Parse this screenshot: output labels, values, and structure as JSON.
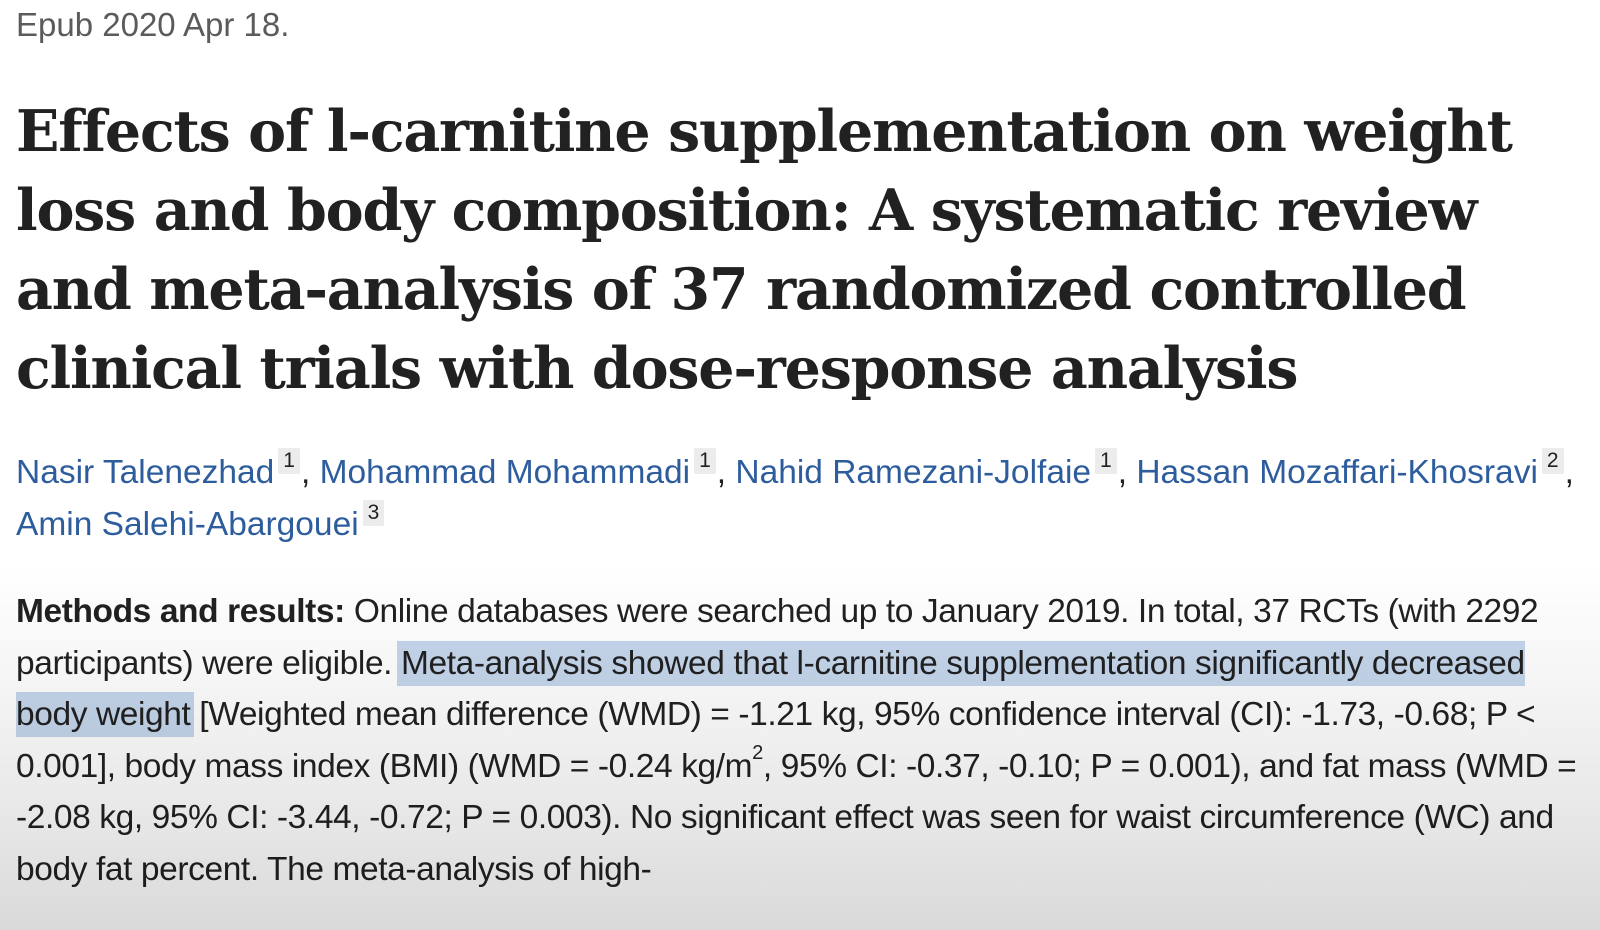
{
  "epub": "Epub 2020 Apr 18.",
  "title": "Effects of l-carnitine supplementation on weight loss and body composition: A systematic review and meta-analysis of 37 randomized controlled clinical trials with dose-response analysis",
  "authors": [
    {
      "name": "Nasir Talenezhad",
      "aff": "1"
    },
    {
      "name": "Mohammad Mohammadi",
      "aff": "1"
    },
    {
      "name": "Nahid Ramezani-Jolfaie",
      "aff": "1"
    },
    {
      "name": "Hassan Mozaffari-Khosravi",
      "aff": "2"
    },
    {
      "name": "Amin Salehi-Abargouei",
      "aff": "3"
    }
  ],
  "abstract": {
    "label": "Methods and results:",
    "text_1": " Online databases were searched up to January 2019. In total, 37 RCTs (with 2292 participants) were eligible. ",
    "highlight": "Meta-analysis showed that l-carnitine supplementation significantly decreased body weight",
    "text_2": " [Weighted mean difference (WMD) = -1.21 kg, 95% confidence interval (CI): -1.73, -0.68; P < 0.001], body mass index (BMI) (WMD = -0.24 kg/m",
    "sup": "2",
    "text_3": ", 95% CI: -0.37, -0.10; P = 0.001), and fat mass (WMD = -2.08 kg, 95% CI: -3.44, -0.72; P = 0.003). No significant effect was seen for waist circumference (WC) and body fat percent. The meta-analysis of high-"
  },
  "colors": {
    "link": "#2e5d9e",
    "highlight": "#c5d6ec",
    "text": "#212121"
  }
}
